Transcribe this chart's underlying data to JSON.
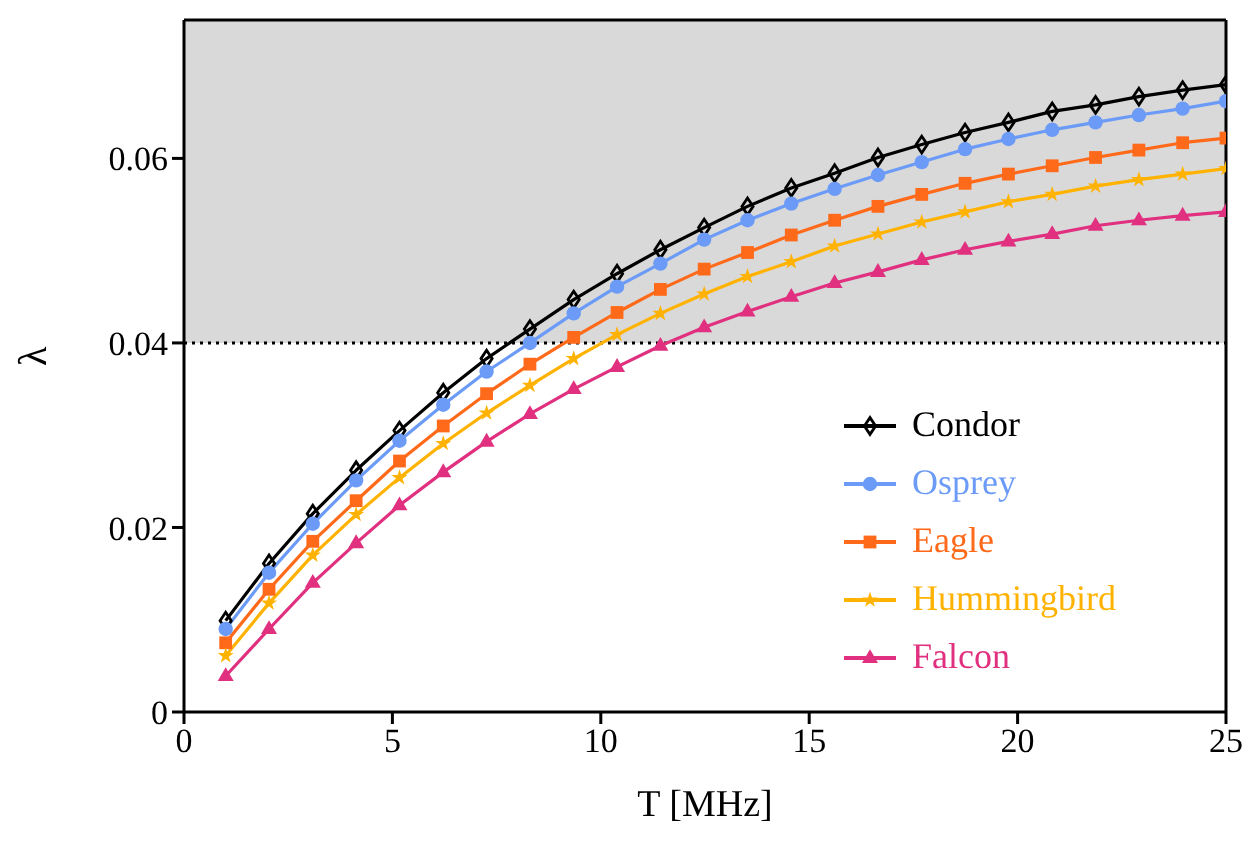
{
  "chart_data": {
    "type": "line",
    "xlabel": "T [MHz]",
    "ylabel": "λ",
    "x": [
      1,
      2.04,
      3.09,
      4.13,
      5.17,
      6.22,
      7.26,
      8.3,
      9.35,
      10.39,
      11.43,
      12.48,
      13.52,
      14.57,
      15.61,
      16.65,
      17.7,
      18.74,
      19.78,
      20.83,
      21.87,
      22.91,
      23.96,
      25
    ],
    "series": [
      {
        "name": "Condor",
        "color": "#000000",
        "marker": "diamond",
        "values": [
          0.0099,
          0.0161,
          0.0215,
          0.0262,
          0.0305,
          0.0346,
          0.0383,
          0.0415,
          0.0447,
          0.0475,
          0.0501,
          0.0525,
          0.0548,
          0.0568,
          0.0584,
          0.0601,
          0.0615,
          0.0628,
          0.0639,
          0.0651,
          0.0658,
          0.0667,
          0.0674,
          0.068
        ]
      },
      {
        "name": "Osprey",
        "color": "#6b9bf7",
        "marker": "circle",
        "values": [
          0.009,
          0.0151,
          0.0204,
          0.0251,
          0.0294,
          0.0333,
          0.0369,
          0.04,
          0.0432,
          0.0461,
          0.0486,
          0.0512,
          0.0533,
          0.0551,
          0.0567,
          0.0582,
          0.0596,
          0.061,
          0.0621,
          0.0631,
          0.0639,
          0.0647,
          0.0654,
          0.0662
        ]
      },
      {
        "name": "Eagle",
        "color": "#ff6a1a",
        "marker": "square",
        "values": [
          0.0075,
          0.0133,
          0.0185,
          0.0229,
          0.0272,
          0.031,
          0.0345,
          0.0377,
          0.0406,
          0.0433,
          0.0458,
          0.048,
          0.0498,
          0.0517,
          0.0533,
          0.0548,
          0.0561,
          0.0573,
          0.0583,
          0.0592,
          0.0601,
          0.0609,
          0.0617,
          0.0622
        ]
      },
      {
        "name": "Hummingbird",
        "color": "#ffb200",
        "marker": "star",
        "values": [
          0.0061,
          0.0118,
          0.017,
          0.0214,
          0.0254,
          0.0291,
          0.0324,
          0.0354,
          0.0383,
          0.0409,
          0.0432,
          0.0453,
          0.0472,
          0.0488,
          0.0505,
          0.0518,
          0.0531,
          0.0542,
          0.0553,
          0.0561,
          0.057,
          0.0577,
          0.0583,
          0.0589
        ]
      },
      {
        "name": "Falcon",
        "color": "#e0307f",
        "marker": "triangle",
        "values": [
          0.0039,
          0.009,
          0.014,
          0.0183,
          0.0224,
          0.026,
          0.0293,
          0.0323,
          0.035,
          0.0374,
          0.0397,
          0.0417,
          0.0434,
          0.045,
          0.0465,
          0.0477,
          0.049,
          0.0501,
          0.051,
          0.0518,
          0.0527,
          0.0533,
          0.0538,
          0.0542
        ]
      }
    ],
    "xlim": [
      0,
      25
    ],
    "xticks": [
      0,
      5,
      10,
      15,
      20,
      25
    ],
    "ylim": [
      0,
      0.075
    ],
    "yticks": [
      0,
      0.02,
      0.04,
      0.06
    ],
    "bands": [
      {
        "axis": "y",
        "from": 0.04,
        "to": 0.075,
        "color": "#d9d9d9"
      }
    ],
    "ref_lines": [
      {
        "axis": "y",
        "value": 0.04,
        "color": "#000000",
        "line_style": "dotted"
      }
    ],
    "grid": false,
    "legend": "bottom right",
    "line_style": "solid"
  }
}
